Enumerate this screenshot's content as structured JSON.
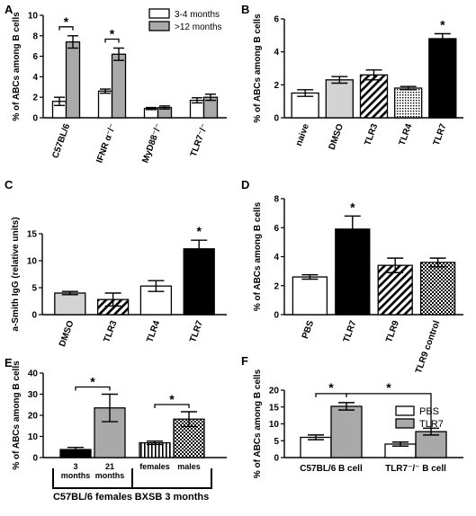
{
  "colors": {
    "white": "#ffffff",
    "gray": "#a9a9a9",
    "light_gray": "#d3d3d3",
    "black": "#000000"
  },
  "panels": [
    {
      "letter": "A"
    },
    {
      "letter": "B"
    },
    {
      "letter": "C"
    },
    {
      "letter": "D"
    },
    {
      "letter": "E"
    },
    {
      "letter": "F"
    }
  ],
  "chart_data": [
    {
      "panel": "A",
      "type": "bar",
      "ylabel": "% of ABCs among B cells",
      "ylim": [
        0,
        10
      ],
      "yticks": [
        "0",
        "2",
        "4",
        "6",
        "8",
        "10"
      ],
      "categories": [
        "C57BL/6",
        "IFNR α⁻/⁻",
        "MyD88⁻/⁻",
        "TLR7⁻/⁻"
      ],
      "series": [
        {
          "name": "3-4 months",
          "fill": "white",
          "values": [
            1.6,
            2.6,
            0.9,
            1.7
          ],
          "errors": [
            0.4,
            0.2,
            0.1,
            0.25
          ]
        },
        {
          "name": ">12 months",
          "fill": "gray",
          "values": [
            7.4,
            6.2,
            1.0,
            2.0
          ],
          "errors": [
            0.6,
            0.6,
            0.15,
            0.3
          ]
        }
      ],
      "significance": [
        {
          "category": 0,
          "label": "*"
        },
        {
          "category": 1,
          "label": "*"
        }
      ],
      "legend": "top-right"
    },
    {
      "panel": "B",
      "type": "bar",
      "ylabel": "% of ABCs among B cells",
      "ylim": [
        0,
        6
      ],
      "yticks": [
        "0",
        "2",
        "4",
        "6"
      ],
      "categories": [
        "naive",
        "DMSO",
        "TLR3",
        "TLR4",
        "TLR7"
      ],
      "values": [
        1.5,
        2.3,
        2.6,
        1.8,
        4.8
      ],
      "errors": [
        0.2,
        0.2,
        0.3,
        0.1,
        0.3
      ],
      "fills": [
        "white",
        "light_gray",
        "diag",
        "dots",
        "black"
      ],
      "significance": [
        {
          "index": 4,
          "label": "*"
        }
      ]
    },
    {
      "panel": "C",
      "type": "bar",
      "ylabel": "a-Smith IgG (relative units)",
      "ylim": [
        0,
        15
      ],
      "yticks": [
        "0",
        "5",
        "10",
        "15"
      ],
      "categories": [
        "DMSO",
        "TLR3",
        "TLR4",
        "TLR7"
      ],
      "values": [
        4.0,
        2.8,
        5.3,
        12.2
      ],
      "errors": [
        0.3,
        1.2,
        1.0,
        1.6
      ],
      "fills": [
        "light_gray",
        "diag",
        "white",
        "black"
      ],
      "significance": [
        {
          "index": 3,
          "label": "*"
        }
      ]
    },
    {
      "panel": "D",
      "type": "bar",
      "ylabel": "% of ABCs among B cells",
      "ylim": [
        0,
        8
      ],
      "yticks": [
        "0",
        "2",
        "4",
        "6",
        "8"
      ],
      "categories": [
        "PBS",
        "TLR7",
        "TLR9",
        "TLR9 control"
      ],
      "values": [
        2.6,
        5.9,
        3.4,
        3.6
      ],
      "errors": [
        0.15,
        0.9,
        0.5,
        0.3
      ],
      "fills": [
        "white",
        "black",
        "diag",
        "checker"
      ],
      "significance": [
        {
          "index": 1,
          "label": "*"
        }
      ]
    },
    {
      "panel": "E",
      "type": "bar",
      "ylabel": "% of ABCs among B cells",
      "ylim": [
        0,
        40
      ],
      "yticks": [
        "0",
        "10",
        "20",
        "30",
        "40"
      ],
      "categories": [
        "3 months",
        "21 months",
        "females",
        "males"
      ],
      "values": [
        3.8,
        23.5,
        7.0,
        18.2
      ],
      "errors": [
        1.0,
        6.5,
        0.8,
        3.5
      ],
      "fills": [
        "black",
        "gray",
        "vert",
        "checker"
      ],
      "groups": [
        {
          "label": "C57BL/6 females",
          "members": [
            0,
            1
          ]
        },
        {
          "label": "BXSB 3 months",
          "members": [
            2,
            3
          ]
        }
      ],
      "significance": [
        {
          "from": 0,
          "to": 1,
          "label": "*"
        },
        {
          "from": 2,
          "to": 3,
          "label": "*"
        }
      ]
    },
    {
      "panel": "F",
      "type": "bar",
      "ylabel": "% of ABCs among B cells",
      "ylim": [
        0,
        20
      ],
      "yticks": [
        "0",
        "5",
        "10",
        "15",
        "20"
      ],
      "categories": [
        "C57BL/6 B cell",
        "TLR7⁻/⁻ B cell"
      ],
      "series": [
        {
          "name": "PBS",
          "fill": "white",
          "values": [
            6.0,
            4.0
          ],
          "errors": [
            0.7,
            0.6
          ]
        },
        {
          "name": "TLR7",
          "fill": "gray",
          "values": [
            15.2,
            7.7
          ],
          "errors": [
            1.1,
            1.0
          ]
        }
      ],
      "significance": [
        {
          "label": "*",
          "kind": "within-group"
        },
        {
          "label": "*",
          "kind": "between-groups"
        }
      ],
      "legend": "right"
    }
  ]
}
